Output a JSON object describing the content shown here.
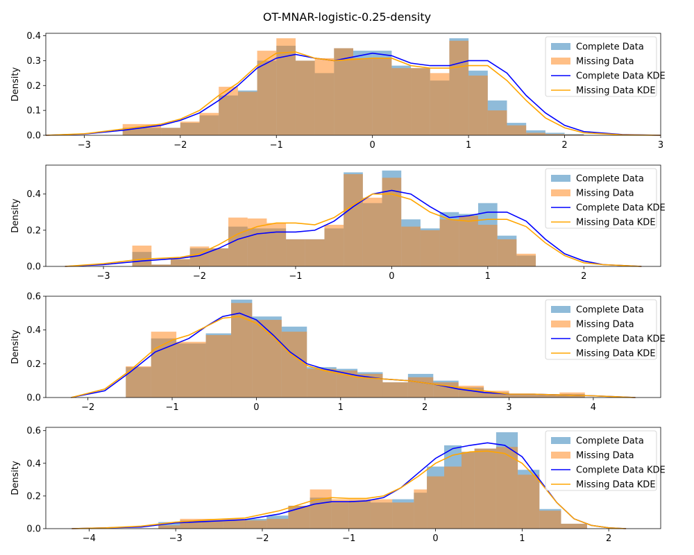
{
  "figure_title": "OT-MNAR-logistic-0.25-density",
  "colors": {
    "complete": "#1f77b4",
    "missing": "#ff7f0e",
    "complete_kde": "#0000ff",
    "missing_kde": "#ffa500"
  },
  "legend_entries": [
    "Complete Data",
    "Missing Data",
    "Complete Data KDE",
    "Missing Data KDE"
  ],
  "chart_data": [
    {
      "type": "histogram+kde",
      "ylabel": "Density",
      "legend": "top-right",
      "xlim": [
        -3.4,
        3.0
      ],
      "ylim": [
        0,
        0.41
      ],
      "xticks": [
        -3,
        -2,
        -1,
        0,
        1,
        2,
        3
      ],
      "yticks": [
        0.0,
        0.1,
        0.2,
        0.3,
        0.4
      ],
      "bin_edges": [
        -2.6,
        -2.2,
        -2.0,
        -1.8,
        -1.6,
        -1.4,
        -1.2,
        -1.0,
        -0.8,
        -0.6,
        -0.4,
        -0.2,
        0.0,
        0.2,
        0.4,
        0.6,
        0.8,
        1.0,
        1.2,
        1.4,
        1.6,
        1.8,
        2.0,
        2.2
      ],
      "series": [
        {
          "name": "Complete Data",
          "values": [
            0.03,
            0.03,
            0.05,
            0.08,
            0.16,
            0.18,
            0.3,
            0.36,
            0.3,
            0.25,
            0.35,
            0.34,
            0.34,
            0.28,
            0.27,
            0.22,
            0.39,
            0.26,
            0.14,
            0.05,
            0.02,
            0.01,
            0.005
          ]
        },
        {
          "name": "Missing Data",
          "values": [
            0.045,
            0.03,
            0.055,
            0.09,
            0.195,
            0.175,
            0.34,
            0.39,
            0.3,
            0.31,
            0.35,
            0.31,
            0.31,
            0.27,
            0.27,
            0.25,
            0.38,
            0.24,
            0.1,
            0.04,
            0.01,
            0.005,
            0.003
          ]
        }
      ],
      "kde": [
        {
          "name": "Complete Data KDE",
          "x": [
            -3.4,
            -3.0,
            -2.6,
            -2.2,
            -2.0,
            -1.8,
            -1.6,
            -1.4,
            -1.2,
            -1.0,
            -0.8,
            -0.6,
            -0.4,
            -0.2,
            0.0,
            0.2,
            0.4,
            0.6,
            0.8,
            1.0,
            1.2,
            1.4,
            1.6,
            1.8,
            2.0,
            2.2,
            2.6,
            3.0
          ],
          "y": [
            0.0,
            0.005,
            0.02,
            0.04,
            0.06,
            0.09,
            0.14,
            0.2,
            0.27,
            0.31,
            0.325,
            0.31,
            0.3,
            0.315,
            0.33,
            0.32,
            0.29,
            0.28,
            0.28,
            0.3,
            0.3,
            0.25,
            0.16,
            0.09,
            0.04,
            0.015,
            0.003,
            0.0
          ]
        },
        {
          "name": "Missing Data KDE",
          "x": [
            -3.4,
            -3.0,
            -2.6,
            -2.2,
            -2.0,
            -1.8,
            -1.6,
            -1.4,
            -1.2,
            -1.0,
            -0.8,
            -0.6,
            -0.4,
            -0.2,
            0.0,
            0.2,
            0.4,
            0.6,
            0.8,
            1.0,
            1.2,
            1.4,
            1.6,
            1.8,
            2.0,
            2.2,
            2.6,
            3.0
          ],
          "y": [
            0.0,
            0.006,
            0.025,
            0.045,
            0.065,
            0.1,
            0.16,
            0.21,
            0.28,
            0.33,
            0.335,
            0.31,
            0.3,
            0.305,
            0.31,
            0.31,
            0.28,
            0.27,
            0.27,
            0.28,
            0.28,
            0.22,
            0.14,
            0.07,
            0.03,
            0.01,
            0.002,
            0.0
          ]
        }
      ]
    },
    {
      "type": "histogram+kde",
      "ylabel": "Density",
      "legend": "top-right",
      "xlim": [
        -3.6,
        2.8
      ],
      "ylim": [
        0,
        0.56
      ],
      "xticks": [
        -3,
        -2,
        -1,
        0,
        1,
        2
      ],
      "yticks": [
        0.0,
        0.2,
        0.4
      ],
      "bin_edges": [
        -2.7,
        -2.5,
        -2.3,
        -2.1,
        -1.9,
        -1.7,
        -1.5,
        -1.3,
        -1.1,
        -0.9,
        -0.7,
        -0.5,
        -0.3,
        -0.1,
        0.1,
        0.3,
        0.5,
        0.7,
        0.9,
        1.1,
        1.3,
        1.5,
        1.7,
        1.9
      ],
      "series": [
        {
          "name": "Complete Data",
          "values": [
            0.08,
            0.01,
            0.04,
            0.1,
            0.1,
            0.22,
            0.21,
            0.21,
            0.15,
            0.15,
            0.21,
            0.52,
            0.35,
            0.53,
            0.26,
            0.21,
            0.3,
            0.29,
            0.35,
            0.17,
            0.06,
            0.0,
            0.0
          ]
        },
        {
          "name": "Missing Data",
          "values": [
            0.115,
            0.01,
            0.04,
            0.11,
            0.1,
            0.27,
            0.265,
            0.24,
            0.15,
            0.15,
            0.23,
            0.51,
            0.38,
            0.49,
            0.22,
            0.2,
            0.26,
            0.28,
            0.23,
            0.15,
            0.07,
            0.0,
            0.0
          ]
        }
      ],
      "kde": [
        {
          "name": "Complete Data KDE",
          "x": [
            -3.4,
            -3.0,
            -2.6,
            -2.2,
            -2.0,
            -1.8,
            -1.6,
            -1.4,
            -1.2,
            -1.0,
            -0.8,
            -0.6,
            -0.4,
            -0.2,
            0.0,
            0.2,
            0.4,
            0.6,
            0.8,
            1.0,
            1.2,
            1.4,
            1.6,
            1.8,
            2.0,
            2.2,
            2.6
          ],
          "y": [
            0.0,
            0.01,
            0.03,
            0.045,
            0.06,
            0.1,
            0.15,
            0.18,
            0.19,
            0.19,
            0.2,
            0.25,
            0.33,
            0.4,
            0.42,
            0.4,
            0.33,
            0.27,
            0.28,
            0.3,
            0.3,
            0.25,
            0.15,
            0.07,
            0.03,
            0.01,
            0.0
          ]
        },
        {
          "name": "Missing Data KDE",
          "x": [
            -3.4,
            -3.0,
            -2.6,
            -2.2,
            -2.0,
            -1.8,
            -1.6,
            -1.4,
            -1.2,
            -1.0,
            -0.8,
            -0.6,
            -0.4,
            -0.2,
            0.0,
            0.2,
            0.4,
            0.6,
            0.8,
            1.0,
            1.2,
            1.4,
            1.6,
            1.8,
            2.0,
            2.2,
            2.6
          ],
          "y": [
            0.0,
            0.015,
            0.04,
            0.05,
            0.07,
            0.12,
            0.18,
            0.22,
            0.24,
            0.24,
            0.23,
            0.27,
            0.34,
            0.4,
            0.4,
            0.37,
            0.3,
            0.26,
            0.25,
            0.26,
            0.26,
            0.22,
            0.13,
            0.06,
            0.02,
            0.01,
            0.0
          ]
        }
      ]
    },
    {
      "type": "histogram+kde",
      "ylabel": "Density",
      "legend": "top-right",
      "xlim": [
        -2.5,
        4.8
      ],
      "ylim": [
        0,
        0.6
      ],
      "xticks": [
        -2,
        -1,
        0,
        1,
        2,
        3,
        4
      ],
      "yticks": [
        0.0,
        0.2,
        0.4,
        0.6
      ],
      "bin_edges": [
        -1.55,
        -1.25,
        -0.95,
        -0.6,
        -0.3,
        -0.05,
        0.3,
        0.6,
        0.95,
        1.2,
        1.5,
        1.8,
        2.1,
        2.4,
        2.7,
        3.0,
        3.3,
        3.6,
        3.9
      ],
      "series": [
        {
          "name": "Complete Data",
          "values": [
            0.18,
            0.35,
            0.32,
            0.38,
            0.58,
            0.48,
            0.42,
            0.18,
            0.17,
            0.15,
            0.09,
            0.14,
            0.1,
            0.06,
            0.03,
            0.02,
            0.02,
            0.02
          ]
        },
        {
          "name": "Missing Data",
          "values": [
            0.185,
            0.39,
            0.33,
            0.37,
            0.56,
            0.46,
            0.39,
            0.17,
            0.16,
            0.14,
            0.09,
            0.12,
            0.09,
            0.07,
            0.04,
            0.02,
            0.02,
            0.03
          ]
        }
      ],
      "kde": [
        {
          "name": "Complete Data KDE",
          "x": [
            -2.2,
            -1.8,
            -1.5,
            -1.2,
            -1.0,
            -0.8,
            -0.6,
            -0.4,
            -0.2,
            0.0,
            0.2,
            0.4,
            0.6,
            0.8,
            1.0,
            1.2,
            1.5,
            1.8,
            2.1,
            2.4,
            2.7,
            3.0,
            3.3,
            3.6,
            4.0,
            4.5
          ],
          "y": [
            0.0,
            0.04,
            0.15,
            0.27,
            0.31,
            0.35,
            0.42,
            0.48,
            0.5,
            0.46,
            0.37,
            0.27,
            0.2,
            0.17,
            0.15,
            0.13,
            0.11,
            0.1,
            0.08,
            0.05,
            0.03,
            0.02,
            0.02,
            0.015,
            0.01,
            0.0
          ]
        },
        {
          "name": "Missing Data KDE",
          "x": [
            -2.2,
            -1.8,
            -1.5,
            -1.2,
            -1.0,
            -0.8,
            -0.6,
            -0.4,
            -0.2,
            0.0,
            0.2,
            0.4,
            0.6,
            0.8,
            1.0,
            1.2,
            1.5,
            1.8,
            2.1,
            2.4,
            2.7,
            3.0,
            3.3,
            3.6,
            4.0,
            4.5
          ],
          "y": [
            0.0,
            0.05,
            0.16,
            0.29,
            0.34,
            0.37,
            0.42,
            0.47,
            0.48,
            0.44,
            0.36,
            0.26,
            0.19,
            0.16,
            0.14,
            0.12,
            0.11,
            0.1,
            0.08,
            0.06,
            0.04,
            0.02,
            0.02,
            0.015,
            0.01,
            0.0
          ]
        }
      ]
    },
    {
      "type": "histogram+kde",
      "ylabel": "Density",
      "legend": "top-right",
      "xlim": [
        -4.5,
        2.6
      ],
      "ylim": [
        0,
        0.62
      ],
      "xticks": [
        -4,
        -3,
        -2,
        -1,
        0,
        1,
        2
      ],
      "yticks": [
        0.0,
        0.2,
        0.4,
        0.6
      ],
      "bin_edges": [
        -3.2,
        -2.95,
        -2.7,
        -2.45,
        -2.2,
        -1.95,
        -1.7,
        -1.45,
        -1.2,
        -1.0,
        -0.75,
        -0.5,
        -0.25,
        -0.1,
        0.1,
        0.3,
        0.45,
        0.7,
        0.95,
        1.2,
        1.45,
        1.75
      ],
      "series": [
        {
          "name": "Complete Data",
          "values": [
            0.04,
            0.05,
            0.05,
            0.05,
            0.06,
            0.08,
            0.14,
            0.19,
            0.16,
            0.17,
            0.16,
            0.18,
            0.22,
            0.38,
            0.51,
            0.47,
            0.49,
            0.59,
            0.36,
            0.12,
            0.03
          ]
        },
        {
          "name": "Missing Data",
          "values": [
            0.02,
            0.06,
            0.06,
            0.06,
            0.05,
            0.06,
            0.14,
            0.24,
            0.18,
            0.18,
            0.18,
            0.16,
            0.24,
            0.32,
            0.38,
            0.47,
            0.49,
            0.5,
            0.33,
            0.11,
            0.03
          ]
        }
      ],
      "kde": [
        {
          "name": "Complete Data KDE",
          "x": [
            -4.2,
            -3.8,
            -3.4,
            -3.0,
            -2.6,
            -2.2,
            -1.8,
            -1.4,
            -1.2,
            -1.0,
            -0.8,
            -0.6,
            -0.4,
            -0.2,
            0.0,
            0.2,
            0.4,
            0.6,
            0.8,
            1.0,
            1.2,
            1.4,
            1.6,
            1.8,
            2.0,
            2.2
          ],
          "y": [
            0.0,
            0.005,
            0.01,
            0.035,
            0.045,
            0.055,
            0.09,
            0.15,
            0.165,
            0.165,
            0.17,
            0.19,
            0.25,
            0.34,
            0.43,
            0.49,
            0.51,
            0.525,
            0.51,
            0.44,
            0.3,
            0.16,
            0.06,
            0.02,
            0.005,
            0.0
          ]
        },
        {
          "name": "Missing Data KDE",
          "x": [
            -4.2,
            -3.8,
            -3.4,
            -3.0,
            -2.6,
            -2.2,
            -1.8,
            -1.4,
            -1.2,
            -1.0,
            -0.8,
            -0.6,
            -0.4,
            -0.2,
            0.0,
            0.2,
            0.4,
            0.6,
            0.8,
            1.0,
            1.2,
            1.4,
            1.6,
            1.8,
            2.0,
            2.2
          ],
          "y": [
            0.0,
            0.005,
            0.015,
            0.04,
            0.055,
            0.065,
            0.11,
            0.175,
            0.19,
            0.185,
            0.185,
            0.2,
            0.25,
            0.32,
            0.4,
            0.45,
            0.47,
            0.475,
            0.46,
            0.4,
            0.29,
            0.16,
            0.06,
            0.02,
            0.005,
            0.0
          ]
        }
      ]
    }
  ]
}
